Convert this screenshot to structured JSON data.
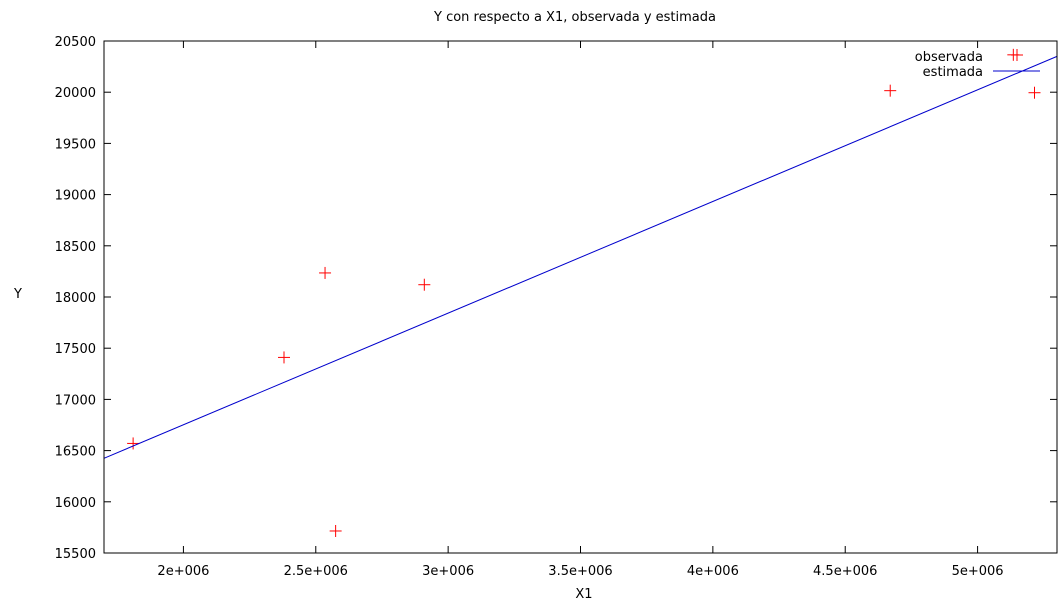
{
  "chart_data": {
    "type": "scatter",
    "title": "Y con respecto a X1, observada y estimada",
    "xlabel": "X1",
    "ylabel": "Y",
    "xlim": [
      1700000,
      5300000
    ],
    "ylim": [
      15500,
      20500
    ],
    "x_ticks": [
      {
        "value": 2000000,
        "label": "2e+006"
      },
      {
        "value": 2500000,
        "label": "2.5e+006"
      },
      {
        "value": 3000000,
        "label": "3e+006"
      },
      {
        "value": 3500000,
        "label": "3.5e+006"
      },
      {
        "value": 4000000,
        "label": "4e+006"
      },
      {
        "value": 4500000,
        "label": "4.5e+006"
      },
      {
        "value": 5000000,
        "label": "5e+006"
      }
    ],
    "y_ticks": [
      {
        "value": 15500,
        "label": "15500"
      },
      {
        "value": 16000,
        "label": "16000"
      },
      {
        "value": 16500,
        "label": "16500"
      },
      {
        "value": 17000,
        "label": "17000"
      },
      {
        "value": 17500,
        "label": "17500"
      },
      {
        "value": 18000,
        "label": "18000"
      },
      {
        "value": 18500,
        "label": "18500"
      },
      {
        "value": 19000,
        "label": "19000"
      },
      {
        "value": 19500,
        "label": "19500"
      },
      {
        "value": 20000,
        "label": "20000"
      },
      {
        "value": 20500,
        "label": "20500"
      }
    ],
    "legend_position": "top-right",
    "grid": false,
    "series": [
      {
        "name": "observada",
        "kind": "points",
        "marker": "plus",
        "color": "#ff0000",
        "points": [
          {
            "x": 1810000,
            "y": 16570
          },
          {
            "x": 2380000,
            "y": 17410
          },
          {
            "x": 2535000,
            "y": 18235
          },
          {
            "x": 2575000,
            "y": 15715
          },
          {
            "x": 2910000,
            "y": 18120
          },
          {
            "x": 4670000,
            "y": 20015
          },
          {
            "x": 5135000,
            "y": 20365
          },
          {
            "x": 5215000,
            "y": 19995
          }
        ]
      },
      {
        "name": "estimada",
        "kind": "line",
        "color": "#0000cc",
        "points": [
          {
            "x": 1700000,
            "y": 16425
          },
          {
            "x": 5300000,
            "y": 20350
          }
        ]
      }
    ]
  }
}
